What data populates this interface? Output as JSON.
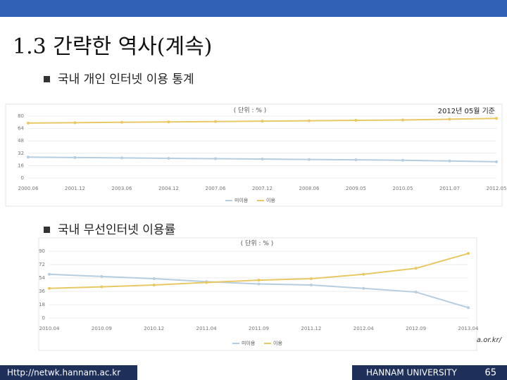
{
  "header": {
    "title": "1.3 간략한 역사(계속)"
  },
  "bullets": [
    "국내 개인 인터넷 이용 통계",
    "국내 무선인터넷 이용률"
  ],
  "source": "출처: http://isis.kisa.or.kr/",
  "footer": {
    "url": "Http://netwk.hannam.ac.kr",
    "university": "HANNAM UNIVERSITY",
    "page": "65"
  },
  "chart_data": [
    {
      "type": "line",
      "subtitle": "( 단위 : % )",
      "annotation": "2012년 05월 기준",
      "categories": [
        "2000.06",
        "2001.12",
        "2003.06",
        "2004.12",
        "2007.06",
        "2007.12",
        "2008.06",
        "2009.05",
        "2010.05",
        "2011.07",
        "2012.05"
      ],
      "series": [
        {
          "name": "미이용",
          "color": "#b7cde0",
          "values": [
            27,
            26.5,
            26,
            25.5,
            25,
            24.5,
            24,
            23.5,
            23,
            22,
            21
          ]
        },
        {
          "name": "이용",
          "color": "#e8c865",
          "values": [
            71,
            71.5,
            72,
            72.5,
            73,
            73.5,
            74,
            74.5,
            75,
            76,
            77
          ]
        }
      ],
      "ylim": [
        0,
        80
      ],
      "yticks": [
        0,
        16,
        32,
        48,
        64,
        80
      ],
      "grid": true
    },
    {
      "type": "line",
      "subtitle": "( 단위 : % )",
      "categories": [
        "2010.04",
        "2010.09",
        "2010.12",
        "2011.04",
        "2011.09",
        "2011.12",
        "2012.04",
        "2012.09",
        "2013.04"
      ],
      "series": [
        {
          "name": "미이용",
          "color": "#b7cde0",
          "values": [
            59,
            56,
            53,
            49,
            46,
            44.5,
            40,
            35,
            14
          ]
        },
        {
          "name": "이용",
          "color": "#e8c865",
          "values": [
            40,
            42,
            44.5,
            48,
            51,
            53,
            59,
            67,
            87
          ]
        }
      ],
      "ylim": [
        0,
        90
      ],
      "yticks": [
        0,
        18,
        36,
        54,
        72,
        90
      ],
      "grid": true
    }
  ]
}
